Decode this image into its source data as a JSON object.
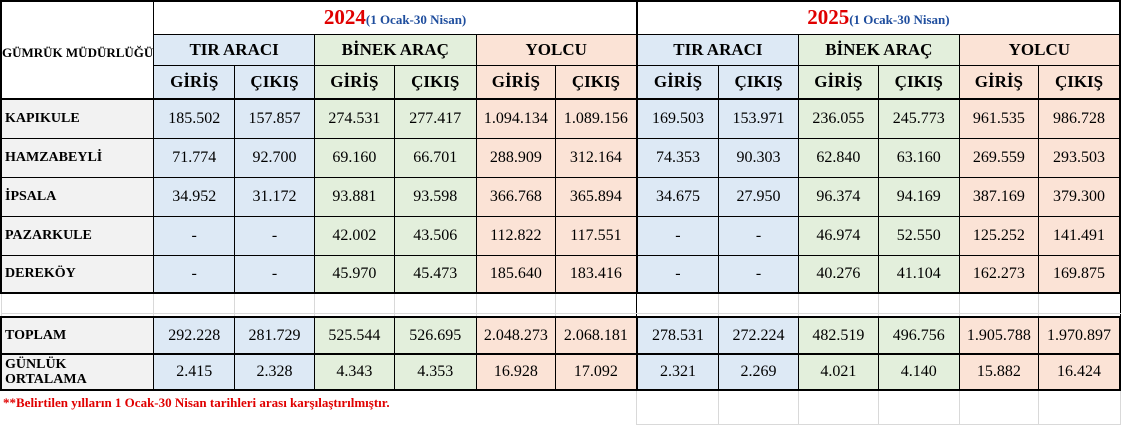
{
  "header": {
    "corner_title": "GÜMRÜK MÜDÜRLÜĞÜ",
    "year_a": "2024",
    "year_a_range": "(1 Ocak-30 Nisan)",
    "year_b": "2025",
    "year_b_range": "(1 Ocak-30 Nisan)",
    "groups": [
      "TIR ARACI",
      "BİNEK ARAÇ",
      "YOLCU",
      "TIR ARACI",
      "BİNEK ARAÇ",
      "YOLCU"
    ],
    "in_label": "GİRİŞ",
    "out_label": "ÇIKIŞ"
  },
  "rows": [
    {
      "name": "KAPIKULE",
      "values": [
        "185.502",
        "157.857",
        "274.531",
        "277.417",
        "1.094.134",
        "1.089.156",
        "169.503",
        "153.971",
        "236.055",
        "245.773",
        "961.535",
        "986.728"
      ]
    },
    {
      "name": "HAMZABEYLİ",
      "values": [
        "71.774",
        "92.700",
        "69.160",
        "66.701",
        "288.909",
        "312.164",
        "74.353",
        "90.303",
        "62.840",
        "63.160",
        "269.559",
        "293.503"
      ]
    },
    {
      "name": "İPSALA",
      "values": [
        "34.952",
        "31.172",
        "93.881",
        "93.598",
        "366.768",
        "365.894",
        "34.675",
        "27.950",
        "96.374",
        "94.169",
        "387.169",
        "379.300"
      ]
    },
    {
      "name": "PAZARKULE",
      "values": [
        "-",
        "-",
        "42.002",
        "43.506",
        "112.822",
        "117.551",
        "-",
        "-",
        "46.974",
        "52.550",
        "125.252",
        "141.491"
      ]
    },
    {
      "name": "DEREKÖY",
      "values": [
        "-",
        "-",
        "45.970",
        "45.473",
        "185.640",
        "183.416",
        "-",
        "-",
        "40.276",
        "41.104",
        "162.273",
        "169.875"
      ]
    }
  ],
  "totals": {
    "name": "TOPLAM",
    "values": [
      "292.228",
      "281.729",
      "525.544",
      "526.695",
      "2.048.273",
      "2.068.181",
      "278.531",
      "272.224",
      "482.519",
      "496.756",
      "1.905.788",
      "1.970.897"
    ]
  },
  "daily": {
    "name_line1": "GÜNLÜK",
    "name_line2": "ORTALAMA",
    "values": [
      "2.415",
      "2.328",
      "4.343",
      "4.353",
      "16.928",
      "17.092",
      "2.321",
      "2.269",
      "4.021",
      "4.140",
      "15.882",
      "16.424"
    ]
  },
  "footnote": "**Belirtilen yılların 1 Ocak-30 Nisan tarihleri arası karşılaştırılmıştır."
}
